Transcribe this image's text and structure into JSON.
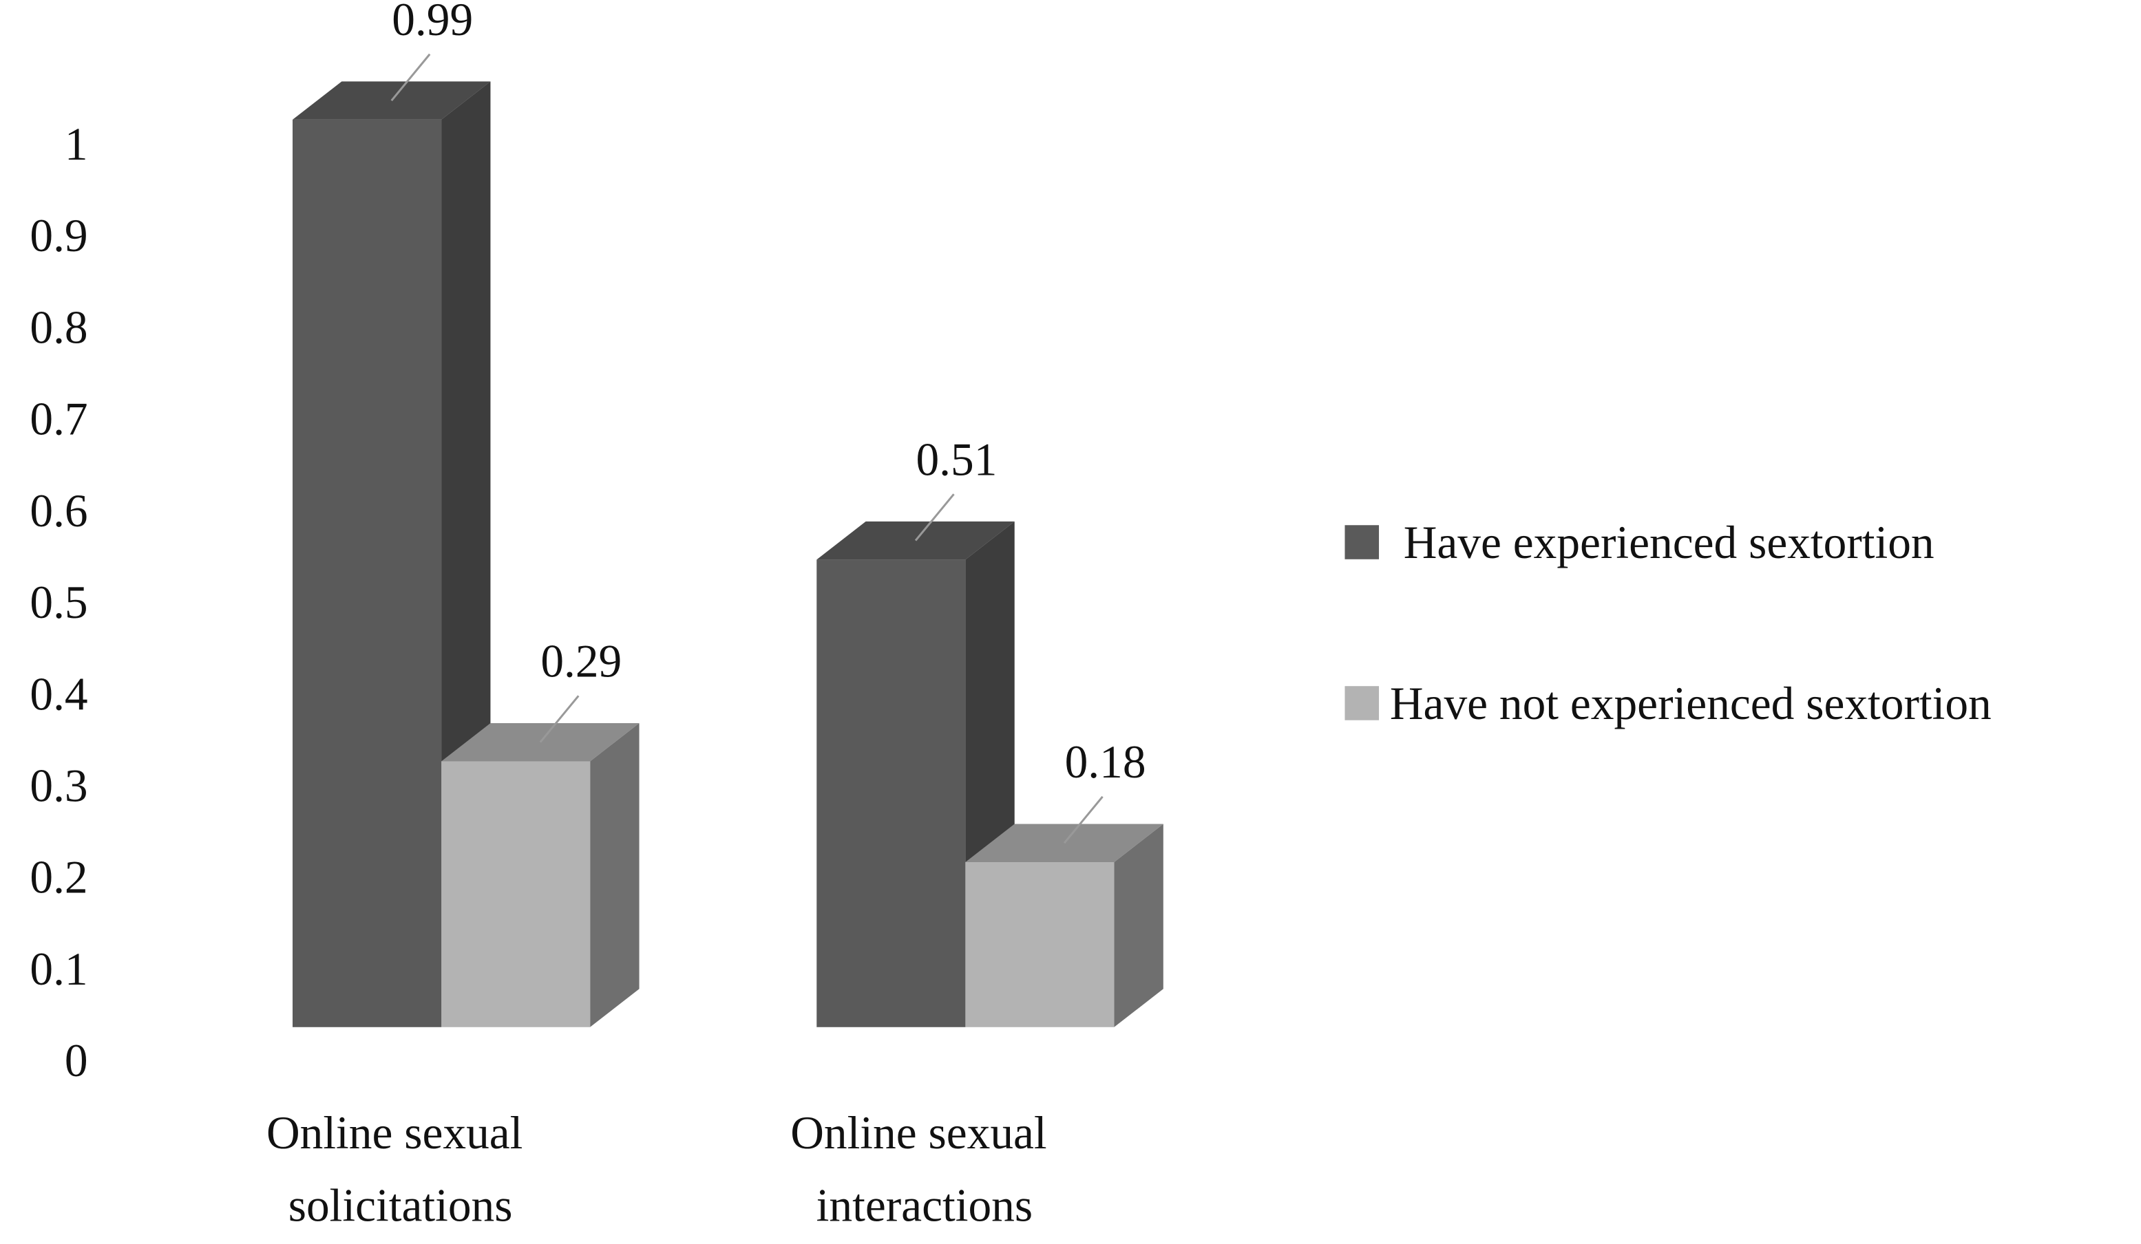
{
  "chart_data": {
    "type": "bar3d",
    "categories": [
      "Online sexual solicitations",
      "Online sexual interactions"
    ],
    "series": [
      {
        "name": "Have experienced sextortion",
        "color": "#5a5a5a",
        "values": [
          0.99,
          0.51
        ]
      },
      {
        "name": "Have not experienced sextortion",
        "color": "#b3b3b3",
        "values": [
          0.29,
          0.18
        ]
      }
    ],
    "ylim": [
      0,
      1
    ],
    "yticks": [
      0,
      0.1,
      0.2,
      0.3,
      0.4,
      0.5,
      0.6,
      0.7,
      0.8,
      0.9,
      1
    ],
    "legend": "right"
  }
}
